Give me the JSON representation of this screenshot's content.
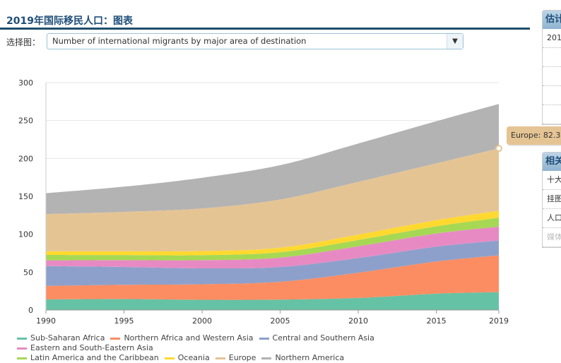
{
  "header": {
    "title": "2019年国际移民人口：图表",
    "select_label": "选择图：",
    "select_value": "Number of international migrants by major area of destination"
  },
  "side_panel_1": {
    "title": "估计",
    "rows": [
      "201"
    ]
  },
  "side_panel_2": {
    "title": "相关",
    "rows": [
      "十大",
      "挂图",
      "人口",
      "媒体"
    ]
  },
  "tooltip": "Europe: 82.3",
  "chart_data": {
    "type": "area",
    "stacked": true,
    "x": [
      1990,
      1995,
      2000,
      2005,
      2010,
      2015,
      2019
    ],
    "xticks": [
      "1990",
      "1995",
      "2000",
      "2005",
      "2010",
      "2015",
      "2019"
    ],
    "yticks": [
      "0",
      "50",
      "100",
      "150",
      "200",
      "250",
      "300"
    ],
    "ylim": [
      0,
      300
    ],
    "grid": "horizontal",
    "legend": "bottom",
    "series": [
      {
        "name": "Sub-Saharan Africa",
        "color": "#66c2a5",
        "values": [
          14.0,
          14.5,
          13.5,
          13.8,
          16.0,
          21.6,
          23.6
        ]
      },
      {
        "name": "Northern Africa and Western Asia",
        "color": "#fc8d62",
        "values": [
          17.8,
          18.8,
          20.5,
          23.5,
          33.3,
          42.4,
          48.6
        ]
      },
      {
        "name": "Central and Southern Asia",
        "color": "#8da0cb",
        "values": [
          26.2,
          23.5,
          21.0,
          19.5,
          19.3,
          19.6,
          19.6
        ]
      },
      {
        "name": "Eastern and South-Eastern Asia",
        "color": "#e78ac3",
        "values": [
          7.6,
          9.0,
          10.8,
          12.3,
          15.6,
          17.4,
          18.3
        ]
      },
      {
        "name": "Latin America and the Caribbean",
        "color": "#a6d854",
        "values": [
          7.1,
          6.7,
          6.6,
          7.2,
          8.2,
          9.4,
          11.7
        ]
      },
      {
        "name": "Oceania",
        "color": "#ffd92f",
        "values": [
          4.7,
          5.0,
          5.4,
          5.9,
          7.1,
          8.1,
          9.1
        ]
      },
      {
        "name": "Europe",
        "color": "#e5c494",
        "values": [
          49.2,
          52.0,
          56.3,
          63.6,
          69.6,
          75.0,
          82.3
        ]
      },
      {
        "name": "Northern America",
        "color": "#b3b3b3",
        "values": [
          27.6,
          33.3,
          40.4,
          45.3,
          50.6,
          55.6,
          58.6
        ]
      }
    ]
  }
}
